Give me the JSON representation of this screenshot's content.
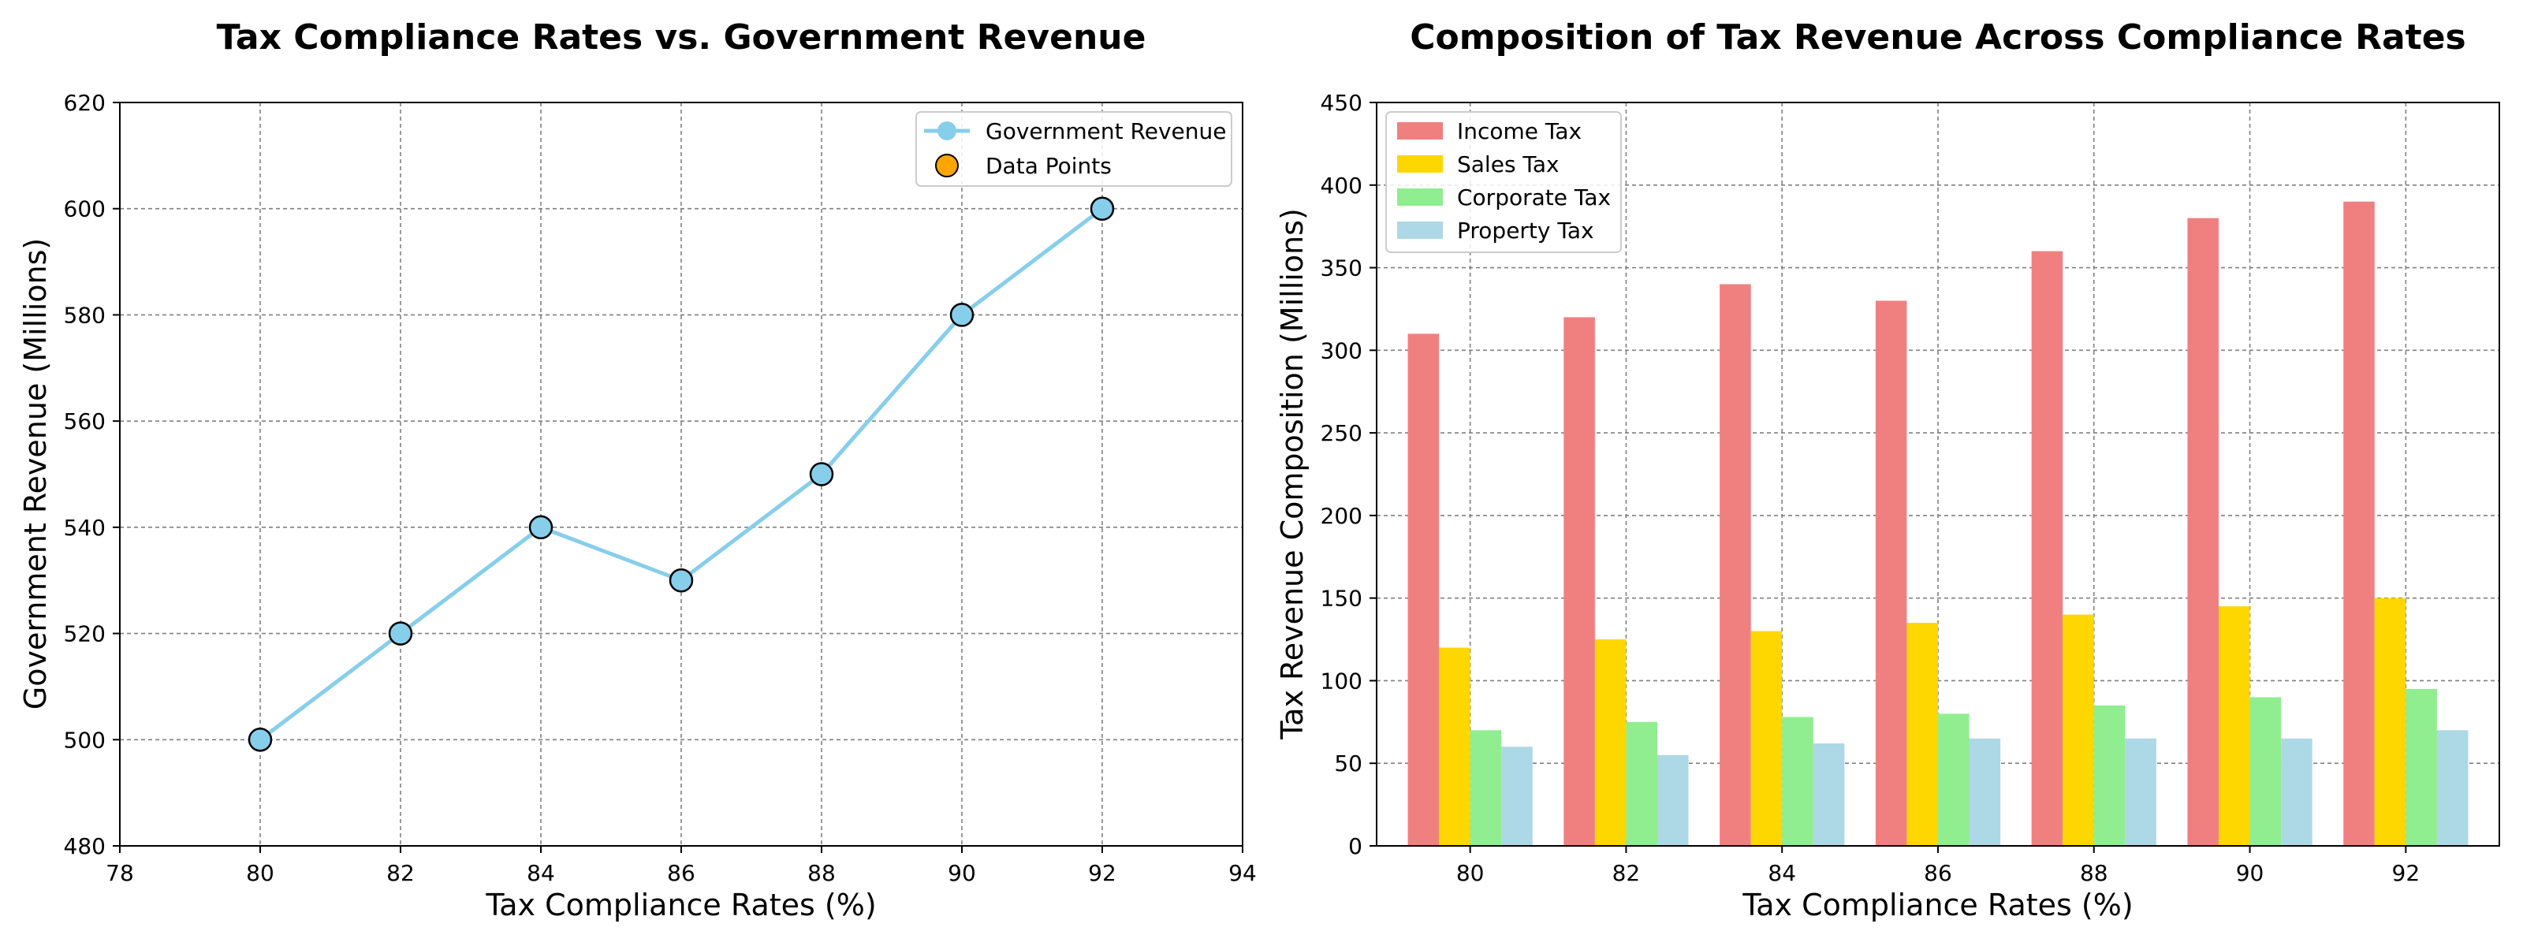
{
  "chart_data": [
    {
      "type": "line",
      "title": "Tax Compliance Rates vs. Government Revenue",
      "xlabel": "Tax Compliance Rates (%)",
      "ylabel": "Government Revenue (Millions)",
      "xlim": [
        78,
        94
      ],
      "ylim": [
        480,
        620
      ],
      "xticks": [
        78,
        80,
        82,
        84,
        86,
        88,
        90,
        92,
        94
      ],
      "yticks": [
        480,
        500,
        520,
        540,
        560,
        580,
        600,
        620
      ],
      "grid": true,
      "legend_position": "top-right",
      "x": [
        80,
        82,
        84,
        86,
        88,
        90,
        92
      ],
      "series": [
        {
          "name": "Government Revenue",
          "values": [
            500,
            520,
            540,
            530,
            550,
            580,
            600
          ],
          "color": "#87CEEB",
          "style": "line"
        },
        {
          "name": "Data Points",
          "values": [
            500,
            520,
            540,
            530,
            550,
            580,
            600
          ],
          "color": "#87CEEB",
          "legend_color": "#FFA500",
          "style": "scatter"
        }
      ]
    },
    {
      "type": "bar",
      "title": "Composition of Tax Revenue Across Compliance Rates",
      "xlabel": "Tax Compliance Rates (%)",
      "ylabel": "Tax Revenue Composition (Millions)",
      "ylim": [
        0,
        450
      ],
      "yticks": [
        0,
        50,
        100,
        150,
        200,
        250,
        300,
        350,
        400,
        450
      ],
      "grid": true,
      "legend_position": "top-left",
      "categories": [
        "80",
        "82",
        "84",
        "86",
        "88",
        "90",
        "92"
      ],
      "series": [
        {
          "name": "Income Tax",
          "values": [
            310,
            320,
            340,
            330,
            360,
            380,
            390
          ],
          "color": "#F08080"
        },
        {
          "name": "Sales Tax",
          "values": [
            120,
            125,
            130,
            135,
            140,
            145,
            150
          ],
          "color": "#FFD700"
        },
        {
          "name": "Corporate Tax",
          "values": [
            70,
            75,
            78,
            80,
            85,
            90,
            95
          ],
          "color": "#90EE90"
        },
        {
          "name": "Property Tax",
          "values": [
            60,
            55,
            62,
            65,
            65,
            65,
            70
          ],
          "color": "#ADD8E6"
        }
      ]
    }
  ]
}
